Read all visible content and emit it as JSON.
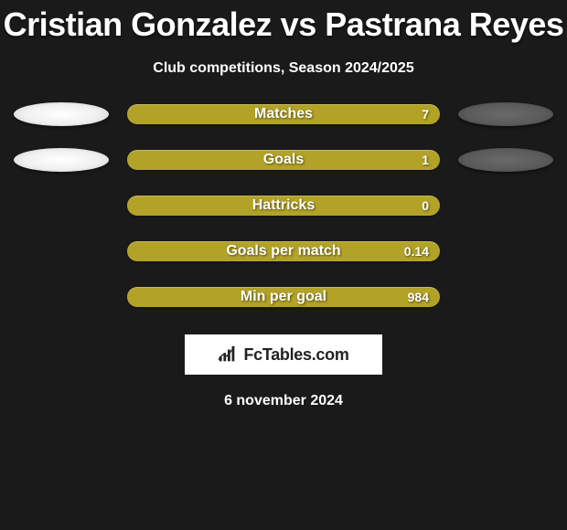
{
  "header": {
    "title": "Cristian Gonzalez vs Pastrana Reyes",
    "subtitle": "Club competitions, Season 2024/2025"
  },
  "bar_color": "#b2a227",
  "stats": [
    {
      "label": "Matches",
      "value": "7",
      "show_ellipses": true
    },
    {
      "label": "Goals",
      "value": "1",
      "show_ellipses": true
    },
    {
      "label": "Hattricks",
      "value": "0",
      "show_ellipses": false
    },
    {
      "label": "Goals per match",
      "value": "0.14",
      "show_ellipses": false
    },
    {
      "label": "Min per goal",
      "value": "984",
      "show_ellipses": false
    }
  ],
  "branding": {
    "text": "FcTables.com"
  },
  "footer": {
    "date": "6 november 2024"
  }
}
